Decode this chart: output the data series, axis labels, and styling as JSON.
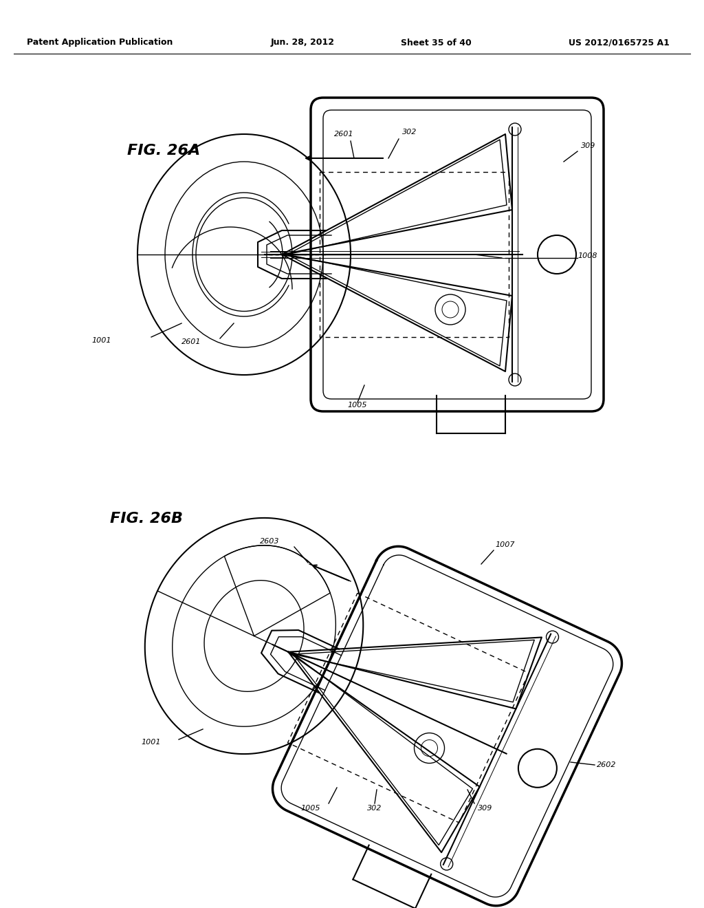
{
  "background_color": "#ffffff",
  "line_color": "#000000",
  "header_text": "Patent Application Publication",
  "header_date": "Jun. 28, 2012",
  "header_sheet": "Sheet 35 of 40",
  "header_patent": "US 2012/0165725 A1",
  "fig_26a_label": "FIG. 26A",
  "fig_26b_label": "FIG. 26B"
}
